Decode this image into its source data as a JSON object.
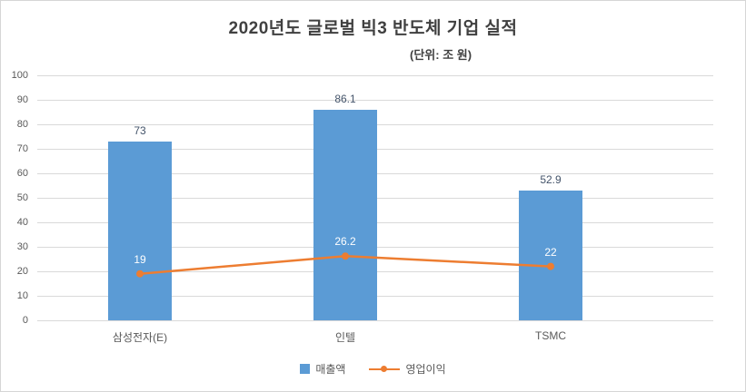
{
  "chart_data": {
    "type": "combo-bar-line",
    "title": "2020년도 글로벌 빅3 반도체 기업 실적",
    "subtitle": "(단위: 조 원)",
    "categories": [
      "삼성전자(E)",
      "인텔",
      "TSMC"
    ],
    "series": [
      {
        "name": "매출액",
        "type": "bar",
        "color": "#5B9BD5",
        "label_color": "#44546A",
        "values": [
          73,
          86.1,
          52.9
        ]
      },
      {
        "name": "영업이익",
        "type": "line",
        "color": "#ED7D31",
        "label_color": "#FFFFFF",
        "values": [
          19,
          26.2,
          22
        ]
      }
    ],
    "ylim": [
      0,
      100
    ],
    "yticks": [
      0,
      10,
      20,
      30,
      40,
      50,
      60,
      70,
      80,
      90,
      100
    ],
    "grid": true,
    "legend_position": "bottom",
    "background": "#FFFFFF",
    "gridline_color": "#D9D9D9",
    "axis_text_color": "#595959",
    "title_color": "#404040"
  }
}
